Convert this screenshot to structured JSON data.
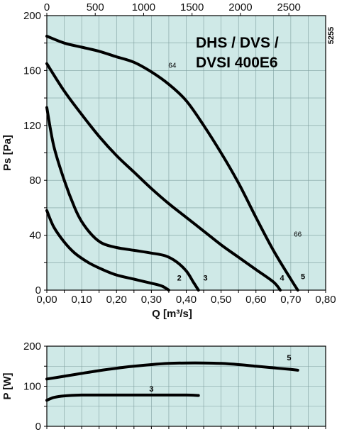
{
  "chart_data": [
    {
      "type": "line",
      "title": "DHS / DVS / DVSI 400E6",
      "title_lines": [
        "DHS / DVS /",
        "DVSI 400E6"
      ],
      "figure_code": "5255",
      "xlabel": "Q [m³/s]",
      "ylabel": "Ps [Pa]",
      "xlim": [
        0,
        0.8
      ],
      "ylim": [
        0,
        200
      ],
      "x_ticks": [
        "0,00",
        "0,10",
        "0,20",
        "0,30",
        "0,40",
        "0,50",
        "0,60",
        "0,70",
        "0,80"
      ],
      "y_ticks": [
        "0",
        "40",
        "80",
        "120",
        "160",
        "200"
      ],
      "x2_ticks": [
        "0",
        "500",
        "1000",
        "1500",
        "2000",
        "2500"
      ],
      "x2_unit_per_q": 3600,
      "grid": true,
      "background": "#cfe9e7",
      "labels": [
        {
          "text": "64",
          "x": 0.36,
          "y": 162
        },
        {
          "text": "66",
          "x": 0.72,
          "y": 39
        }
      ],
      "series": [
        {
          "name": "2",
          "label_at": [
            0.38,
            7
          ],
          "x": [
            0.0,
            0.02,
            0.05,
            0.08,
            0.12,
            0.16,
            0.2,
            0.25,
            0.3,
            0.33,
            0.35
          ],
          "y": [
            58,
            46,
            35,
            27,
            20,
            15,
            11,
            8,
            5,
            3,
            0
          ]
        },
        {
          "name": "3",
          "label_at": [
            0.455,
            7
          ],
          "x": [
            0.0,
            0.02,
            0.05,
            0.08,
            0.1,
            0.13,
            0.16,
            0.2,
            0.25,
            0.3,
            0.34,
            0.37,
            0.4,
            0.42,
            0.435
          ],
          "y": [
            133,
            105,
            80,
            60,
            50,
            40,
            34,
            31,
            29,
            27,
            25,
            21,
            14,
            6,
            0
          ]
        },
        {
          "name": "4",
          "label_at": [
            0.675,
            7
          ],
          "x": [
            0.0,
            0.05,
            0.1,
            0.15,
            0.2,
            0.25,
            0.3,
            0.35,
            0.4,
            0.45,
            0.5,
            0.55,
            0.6,
            0.65,
            0.67
          ],
          "y": [
            165,
            145,
            128,
            112,
            98,
            86,
            74,
            63,
            53,
            43,
            33,
            24,
            15,
            6,
            0
          ]
        },
        {
          "name": "5",
          "label_at": [
            0.735,
            8
          ],
          "x": [
            0.0,
            0.05,
            0.1,
            0.15,
            0.2,
            0.25,
            0.3,
            0.35,
            0.4,
            0.45,
            0.5,
            0.55,
            0.6,
            0.65,
            0.7,
            0.72
          ],
          "y": [
            185,
            180,
            177,
            174,
            170,
            166,
            159,
            150,
            138,
            120,
            100,
            78,
            53,
            29,
            8,
            0
          ]
        }
      ]
    },
    {
      "type": "line",
      "xlabel": "",
      "ylabel": "P [W]",
      "xlim": [
        0,
        0.8
      ],
      "ylim": [
        0,
        200
      ],
      "y_ticks": [
        "0",
        "100",
        "200"
      ],
      "grid": true,
      "background": "#cfe9e7",
      "series": [
        {
          "name": "3",
          "label_at": [
            0.3,
            87
          ],
          "x": [
            0.0,
            0.02,
            0.05,
            0.1,
            0.15,
            0.2,
            0.25,
            0.3,
            0.35,
            0.4,
            0.435
          ],
          "y": [
            65,
            72,
            76,
            78,
            78,
            78,
            78,
            78,
            78,
            78,
            77
          ]
        },
        {
          "name": "5",
          "label_at": [
            0.695,
            165
          ],
          "x": [
            0.0,
            0.05,
            0.1,
            0.15,
            0.2,
            0.25,
            0.3,
            0.35,
            0.4,
            0.45,
            0.5,
            0.55,
            0.6,
            0.65,
            0.7,
            0.72
          ],
          "y": [
            118,
            125,
            132,
            139,
            145,
            150,
            154,
            157,
            158,
            158,
            157,
            154,
            150,
            146,
            142,
            140
          ]
        }
      ]
    }
  ]
}
